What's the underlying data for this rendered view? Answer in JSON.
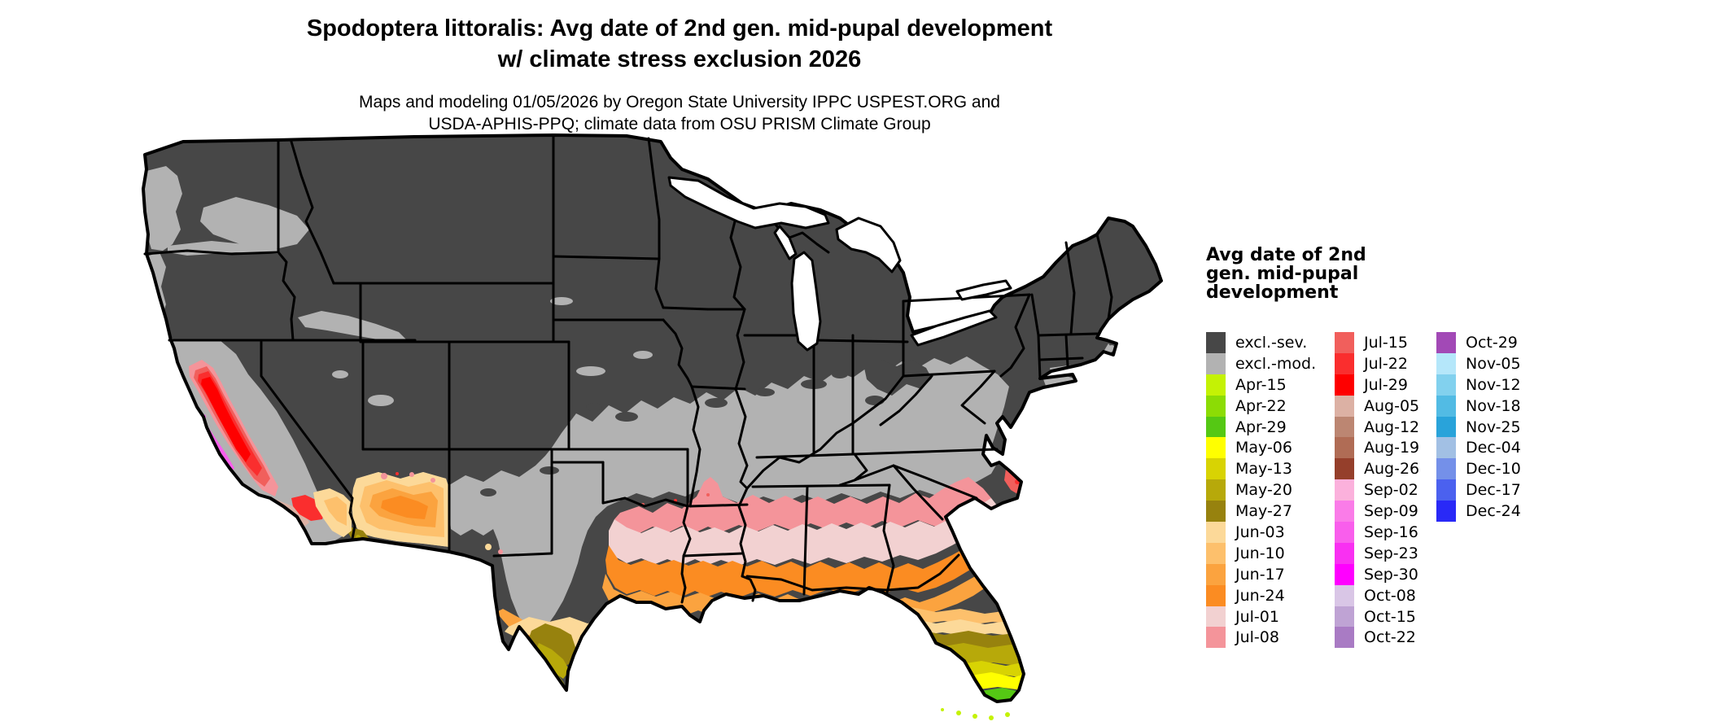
{
  "title": {
    "line1": "Spodoptera littoralis: Avg date of 2nd gen. mid-pupal development",
    "line2": "w/ climate stress exclusion 2026"
  },
  "subtitle": {
    "line1": "Maps and modeling 01/05/2026 by Oregon State University IPPC USPEST.ORG and",
    "line2": "USDA-APHIS-PPQ; climate data from OSU PRISM Climate Group"
  },
  "legend": {
    "title_lines": [
      "Avg date of 2nd",
      "gen. mid-pupal",
      "development"
    ],
    "columns": [
      [
        {
          "label": "excl.-sev.",
          "color": "#474747"
        },
        {
          "label": "excl.-mod.",
          "color": "#b2b2b2"
        },
        {
          "label": "Apr-15",
          "color": "#c4f205"
        },
        {
          "label": "Apr-22",
          "color": "#8cdc05"
        },
        {
          "label": "Apr-29",
          "color": "#55c814"
        },
        {
          "label": "May-06",
          "color": "#ffff00"
        },
        {
          "label": "May-13",
          "color": "#d8d303"
        },
        {
          "label": "May-20",
          "color": "#b7a90a"
        },
        {
          "label": "May-27",
          "color": "#97820e"
        },
        {
          "label": "Jun-03",
          "color": "#fcd999"
        },
        {
          "label": "Jun-10",
          "color": "#fdc06c"
        },
        {
          "label": "Jun-17",
          "color": "#fba33f"
        },
        {
          "label": "Jun-24",
          "color": "#fb8c22"
        },
        {
          "label": "Jul-01",
          "color": "#f2d1d1"
        },
        {
          "label": "Jul-08",
          "color": "#f4949a"
        }
      ],
      [
        {
          "label": "Jul-15",
          "color": "#f15f5c"
        },
        {
          "label": "Jul-22",
          "color": "#fa2e2e"
        },
        {
          "label": "Jul-29",
          "color": "#fe0000"
        },
        {
          "label": "Aug-05",
          "color": "#dcb1a4"
        },
        {
          "label": "Aug-12",
          "color": "#bc8672"
        },
        {
          "label": "Aug-19",
          "color": "#b06c55"
        },
        {
          "label": "Aug-26",
          "color": "#953f2b"
        },
        {
          "label": "Sep-02",
          "color": "#fbb1dc"
        },
        {
          "label": "Sep-09",
          "color": "#fa7ce8"
        },
        {
          "label": "Sep-16",
          "color": "#f95eec"
        },
        {
          "label": "Sep-23",
          "color": "#f930f2"
        },
        {
          "label": "Sep-30",
          "color": "#ff00ff"
        },
        {
          "label": "Oct-08",
          "color": "#d9c6e6"
        },
        {
          "label": "Oct-15",
          "color": "#bfa3d4"
        },
        {
          "label": "Oct-22",
          "color": "#a97bc4"
        }
      ],
      [
        {
          "label": "Oct-29",
          "color": "#a249b6"
        },
        {
          "label": "Nov-05",
          "color": "#b5e7fa"
        },
        {
          "label": "Nov-12",
          "color": "#82d1ee"
        },
        {
          "label": "Nov-18",
          "color": "#52bbe4"
        },
        {
          "label": "Nov-25",
          "color": "#29a3da"
        },
        {
          "label": "Dec-04",
          "color": "#a2c0e4"
        },
        {
          "label": "Dec-10",
          "color": "#7490e9"
        },
        {
          "label": "Dec-17",
          "color": "#4b61ef"
        },
        {
          "label": "Dec-24",
          "color": "#2929f7"
        }
      ]
    ]
  },
  "map": {
    "base_colors": {
      "excluded_severe": "#474747",
      "excluded_moderate": "#b2b2b2",
      "state_border": "#000000",
      "water": "#ffffff"
    }
  }
}
